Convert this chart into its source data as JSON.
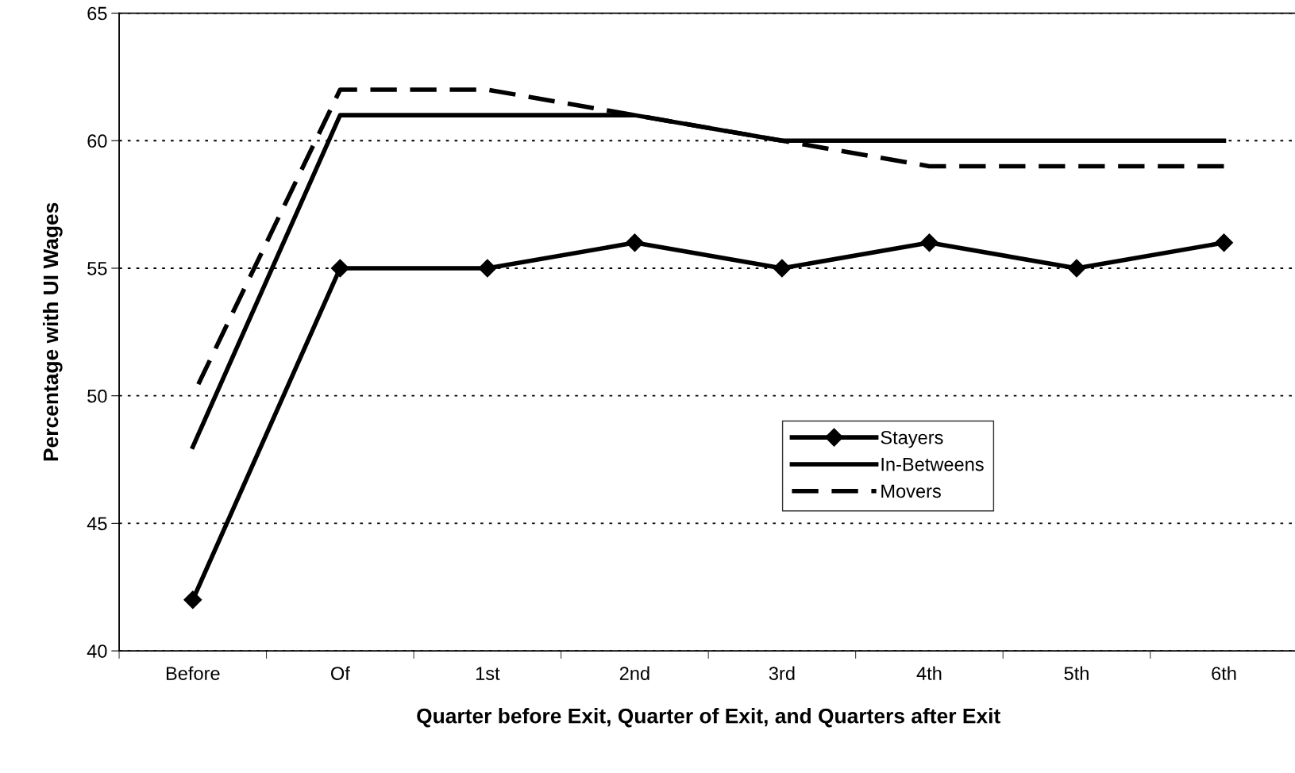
{
  "chart_data": {
    "type": "line",
    "xlabel": "Quarter before Exit, Quarter of Exit, and Quarters after Exit",
    "ylabel": "Percentage with UI Wages",
    "categories": [
      "Before",
      "Of",
      "1st",
      "2nd",
      "3rd",
      "4th",
      "5th",
      "6th"
    ],
    "series": [
      {
        "name": "Stayers",
        "color": "#000000",
        "marker": "diamond",
        "line_style": "solid",
        "values": [
          42,
          55,
          55,
          56,
          55,
          56,
          55,
          56
        ]
      },
      {
        "name": "In-Betweens",
        "color": "#000000",
        "marker": "none",
        "line_style": "solid",
        "values": [
          48,
          61,
          61,
          61,
          60,
          60,
          60,
          60
        ]
      },
      {
        "name": "Movers",
        "color": "#000000",
        "marker": "none",
        "line_style": "dashed",
        "values": [
          50,
          62,
          62,
          61,
          60,
          59,
          59,
          59
        ]
      }
    ],
    "ylim": [
      40,
      65
    ],
    "yticks": [
      40,
      45,
      50,
      55,
      60,
      65
    ],
    "grid": "y",
    "legend": "bottom right"
  }
}
